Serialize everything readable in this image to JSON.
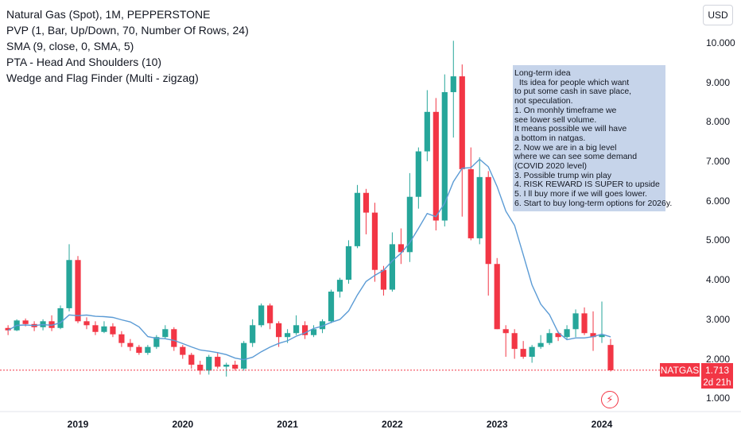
{
  "legend": {
    "title": "Natural Gas (Spot), 1M, PEPPERSTONE",
    "indicators": [
      "PVP (1, Bar, Up/Down, 70, Number Of Rows, 24)",
      "SMA (9, close, 0, SMA, 5)",
      "PTA - Head And Shoulders (10)",
      "Wedge and Flag Finder (Multi - zigzag)"
    ]
  },
  "currency_button": "USD",
  "note": {
    "lines": [
      "Long-term idea",
      "  Its idea for people which want",
      "to put some cash in save place,",
      "not speculation.",
      "1. On monhly timeframe we",
      "see lower sell volume.",
      "It means possible we will have",
      "a bottom in natgas.",
      "2. Now we are in a big level",
      "where we can see some demand",
      "(COVID 2020 level)",
      "3. Possible trump win play",
      "4. RISK REWARD IS SUPER to upside",
      "5. I ll buy more if we will goes lower.",
      "6. Start to buy long-term options for 2026y."
    ]
  },
  "price_tag": {
    "symbol": "NATGAS",
    "price": "1.713",
    "countdown": "2d 21h"
  },
  "colors": {
    "up": "#26a69a",
    "down": "#f23645",
    "sma": "#5b9bd5",
    "note_bg": "#c6d4ea"
  },
  "event_icon": "lightning-icon",
  "chart_data": {
    "type": "candlestick",
    "symbol": "NATGAS",
    "timeframe": "1M",
    "y_ticks": [
      "1.000",
      "2.000",
      "3.000",
      "4.000",
      "5.000",
      "6.000",
      "7.000",
      "8.000",
      "9.000",
      "10.000"
    ],
    "y_tick_values": [
      1,
      2,
      3,
      4,
      5,
      6,
      7,
      8,
      9,
      10
    ],
    "ylim": [
      0.2,
      10.6
    ],
    "x_ticks": [
      "2019",
      "2020",
      "2021",
      "2022",
      "2023",
      "2024"
    ],
    "x_tick_index": [
      8,
      20,
      32,
      44,
      56,
      68
    ],
    "last_price": 1.713,
    "candles": [
      {
        "o": 2.78,
        "h": 2.85,
        "l": 2.6,
        "c": 2.72
      },
      {
        "o": 2.72,
        "h": 3.0,
        "l": 2.7,
        "c": 2.97
      },
      {
        "o": 2.97,
        "h": 3.02,
        "l": 2.82,
        "c": 2.88
      },
      {
        "o": 2.88,
        "h": 2.95,
        "l": 2.7,
        "c": 2.8
      },
      {
        "o": 2.8,
        "h": 3.0,
        "l": 2.72,
        "c": 2.95
      },
      {
        "o": 2.95,
        "h": 3.1,
        "l": 2.7,
        "c": 2.78
      },
      {
        "o": 2.78,
        "h": 3.35,
        "l": 2.75,
        "c": 3.28
      },
      {
        "o": 3.28,
        "h": 4.9,
        "l": 3.2,
        "c": 4.5
      },
      {
        "o": 4.5,
        "h": 4.6,
        "l": 2.9,
        "c": 2.95
      },
      {
        "o": 2.95,
        "h": 3.05,
        "l": 2.75,
        "c": 2.85
      },
      {
        "o": 2.85,
        "h": 2.95,
        "l": 2.6,
        "c": 2.68
      },
      {
        "o": 2.68,
        "h": 2.95,
        "l": 2.65,
        "c": 2.82
      },
      {
        "o": 2.82,
        "h": 2.9,
        "l": 2.55,
        "c": 2.62
      },
      {
        "o": 2.62,
        "h": 2.7,
        "l": 2.3,
        "c": 2.4
      },
      {
        "o": 2.4,
        "h": 2.5,
        "l": 2.2,
        "c": 2.3
      },
      {
        "o": 2.3,
        "h": 2.35,
        "l": 2.1,
        "c": 2.15
      },
      {
        "o": 2.15,
        "h": 2.35,
        "l": 2.1,
        "c": 2.3
      },
      {
        "o": 2.3,
        "h": 2.6,
        "l": 2.25,
        "c": 2.55
      },
      {
        "o": 2.55,
        "h": 2.85,
        "l": 2.5,
        "c": 2.75
      },
      {
        "o": 2.75,
        "h": 2.8,
        "l": 2.2,
        "c": 2.3
      },
      {
        "o": 2.3,
        "h": 2.35,
        "l": 2.0,
        "c": 2.1
      },
      {
        "o": 2.1,
        "h": 2.15,
        "l": 1.75,
        "c": 1.85
      },
      {
        "o": 1.85,
        "h": 1.95,
        "l": 1.6,
        "c": 1.7
      },
      {
        "o": 1.7,
        "h": 2.1,
        "l": 1.6,
        "c": 2.05
      },
      {
        "o": 2.05,
        "h": 2.15,
        "l": 1.75,
        "c": 1.8
      },
      {
        "o": 1.8,
        "h": 1.9,
        "l": 1.55,
        "c": 1.85
      },
      {
        "o": 1.85,
        "h": 1.95,
        "l": 1.7,
        "c": 1.75
      },
      {
        "o": 1.75,
        "h": 2.45,
        "l": 1.7,
        "c": 2.4
      },
      {
        "o": 2.4,
        "h": 3.0,
        "l": 2.3,
        "c": 2.85
      },
      {
        "o": 2.85,
        "h": 3.4,
        "l": 2.8,
        "c": 3.35
      },
      {
        "o": 3.35,
        "h": 3.4,
        "l": 2.75,
        "c": 2.9
      },
      {
        "o": 2.9,
        "h": 2.95,
        "l": 2.3,
        "c": 2.55
      },
      {
        "o": 2.55,
        "h": 2.75,
        "l": 2.4,
        "c": 2.65
      },
      {
        "o": 2.65,
        "h": 3.1,
        "l": 2.6,
        "c": 2.85
      },
      {
        "o": 2.85,
        "h": 2.95,
        "l": 2.5,
        "c": 2.6
      },
      {
        "o": 2.6,
        "h": 2.85,
        "l": 2.55,
        "c": 2.75
      },
      {
        "o": 2.75,
        "h": 3.0,
        "l": 2.65,
        "c": 2.95
      },
      {
        "o": 2.95,
        "h": 3.75,
        "l": 2.9,
        "c": 3.7
      },
      {
        "o": 3.7,
        "h": 4.05,
        "l": 3.55,
        "c": 4.0
      },
      {
        "o": 4.0,
        "h": 5.0,
        "l": 3.9,
        "c": 4.85
      },
      {
        "o": 4.85,
        "h": 6.4,
        "l": 4.8,
        "c": 6.2
      },
      {
        "o": 6.2,
        "h": 6.3,
        "l": 5.15,
        "c": 5.7
      },
      {
        "o": 5.7,
        "h": 5.95,
        "l": 3.95,
        "c": 4.25
      },
      {
        "o": 4.25,
        "h": 4.35,
        "l": 3.6,
        "c": 3.75
      },
      {
        "o": 3.75,
        "h": 5.2,
        "l": 3.7,
        "c": 4.9
      },
      {
        "o": 4.9,
        "h": 5.3,
        "l": 4.4,
        "c": 4.7
      },
      {
        "o": 4.7,
        "h": 6.7,
        "l": 4.45,
        "c": 6.1
      },
      {
        "o": 6.1,
        "h": 7.35,
        "l": 5.8,
        "c": 7.25
      },
      {
        "o": 7.25,
        "h": 8.8,
        "l": 7.0,
        "c": 8.25
      },
      {
        "o": 8.25,
        "h": 8.6,
        "l": 5.25,
        "c": 5.5
      },
      {
        "o": 5.5,
        "h": 9.2,
        "l": 5.35,
        "c": 8.75
      },
      {
        "o": 8.75,
        "h": 10.05,
        "l": 7.6,
        "c": 9.15
      },
      {
        "o": 9.15,
        "h": 9.45,
        "l": 5.6,
        "c": 6.8
      },
      {
        "o": 6.8,
        "h": 7.35,
        "l": 5.0,
        "c": 5.05
      },
      {
        "o": 5.05,
        "h": 7.1,
        "l": 4.9,
        "c": 6.6
      },
      {
        "o": 6.6,
        "h": 6.75,
        "l": 3.6,
        "c": 4.4
      },
      {
        "o": 4.4,
        "h": 4.55,
        "l": 2.75,
        "c": 2.75
      },
      {
        "o": 2.75,
        "h": 2.85,
        "l": 2.05,
        "c": 2.65
      },
      {
        "o": 2.65,
        "h": 2.75,
        "l": 2.0,
        "c": 2.25
      },
      {
        "o": 2.25,
        "h": 2.45,
        "l": 2.0,
        "c": 2.05
      },
      {
        "o": 2.05,
        "h": 2.35,
        "l": 1.9,
        "c": 2.3
      },
      {
        "o": 2.3,
        "h": 2.6,
        "l": 2.25,
        "c": 2.4
      },
      {
        "o": 2.4,
        "h": 2.75,
        "l": 2.35,
        "c": 2.65
      },
      {
        "o": 2.65,
        "h": 2.7,
        "l": 2.45,
        "c": 2.55
      },
      {
        "o": 2.55,
        "h": 2.85,
        "l": 2.5,
        "c": 2.75
      },
      {
        "o": 2.75,
        "h": 3.25,
        "l": 2.55,
        "c": 3.15
      },
      {
        "o": 3.15,
        "h": 3.3,
        "l": 2.6,
        "c": 2.65
      },
      {
        "o": 2.65,
        "h": 3.2,
        "l": 2.2,
        "c": 2.55
      },
      {
        "o": 2.55,
        "h": 3.45,
        "l": 2.4,
        "c": 2.6
      },
      {
        "o": 2.35,
        "h": 2.5,
        "l": 1.68,
        "c": 1.71
      }
    ]
  }
}
